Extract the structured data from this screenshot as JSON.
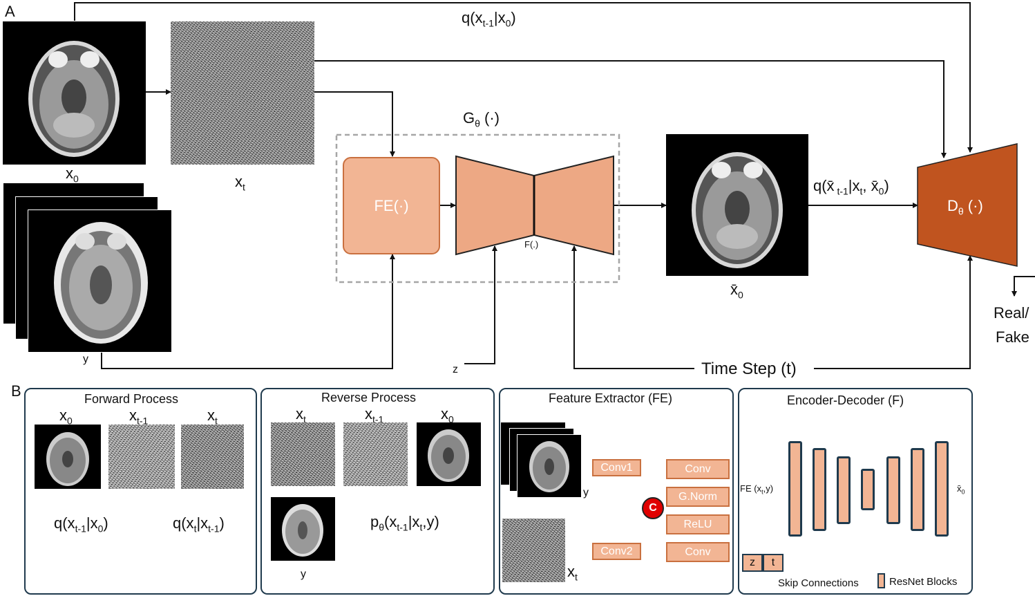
{
  "panel_a": {
    "letter": "A",
    "x0": "x",
    "x0_sub": "0",
    "xt": "x",
    "xt_sub": "t",
    "y": "y",
    "z": "z",
    "forward_q_main": "q(x",
    "forward_q_sub": "t-1",
    "forward_q_mid": "|x",
    "forward_q_sub2": "0",
    "forward_q_end": ")",
    "generator_main": "G",
    "generator_sub": "θ",
    "generator_end": " (·)",
    "fe_label": "FE(·)",
    "f_label": "F(.)",
    "xbar0": "x̄",
    "xbar0_sub": "0",
    "posterior_q_main": "q(x̄",
    "posterior_q_sub": " t-1",
    "posterior_q_mid": "|x",
    "posterior_q_sub2": "t",
    "posterior_q_mid2": ", x̄",
    "posterior_q_sub3": "0",
    "posterior_q_end": ")",
    "disc_main": "D",
    "disc_sub": "θ",
    "disc_end": " (·)",
    "real_fake_line1": "Real/",
    "real_fake_line2": "Fake",
    "time_step": "Time Step (t)"
  },
  "panel_b": {
    "letter": "B",
    "forward": {
      "title": "Forward Process",
      "img_labels": [
        {
          "main": "x",
          "sub": "0"
        },
        {
          "main": "x",
          "sub": "t-1"
        },
        {
          "main": "x",
          "sub": "t"
        }
      ],
      "q1_main": "q(x",
      "q1_sub": "t-1",
      "q1_mid": "|x",
      "q1_sub2": "0",
      "q1_end": ")",
      "q2_main": "q(x",
      "q2_sub": "t",
      "q2_mid": "|x",
      "q2_sub2": "t-1",
      "q2_end": ")"
    },
    "reverse": {
      "title": "Reverse Process",
      "img_labels": [
        {
          "main": "x",
          "sub": "t"
        },
        {
          "main": "x",
          "sub": "t-1"
        },
        {
          "main": "x",
          "sub": "0"
        }
      ],
      "y_label": "y",
      "p_main": "p",
      "p_sub": "θ",
      "p_mid": "(x",
      "p_sub2": "t-1",
      "p_end": "|x",
      "p_sub3": "t",
      "p_end2": ",y)"
    },
    "feature_extractor": {
      "title": "Feature Extractor (FE)",
      "y_label": "y",
      "xt_main": "x",
      "xt_sub": "t",
      "conv1": "Conv1",
      "conv2": "Conv2",
      "concat": "C",
      "blocks": [
        "Conv",
        "G.Norm",
        "ReLU",
        "Conv"
      ]
    },
    "encoder_decoder": {
      "title": "Encoder-Decoder  (F)",
      "input_main": "FE (x",
      "input_sub": "t",
      "input_end": ",y)",
      "output_main": "x̄",
      "output_sub": "0",
      "z_label": "z",
      "t_label": "t",
      "legend_skip": "Skip Connections",
      "legend_resnet": "ResNet Blocks"
    }
  },
  "colors": {
    "light_orange": "#f2b594",
    "mid_orange": "#eda884",
    "dark_orange": "#c0541f",
    "panel_border": "#1f3a4d",
    "concat_red": "#e00000"
  }
}
